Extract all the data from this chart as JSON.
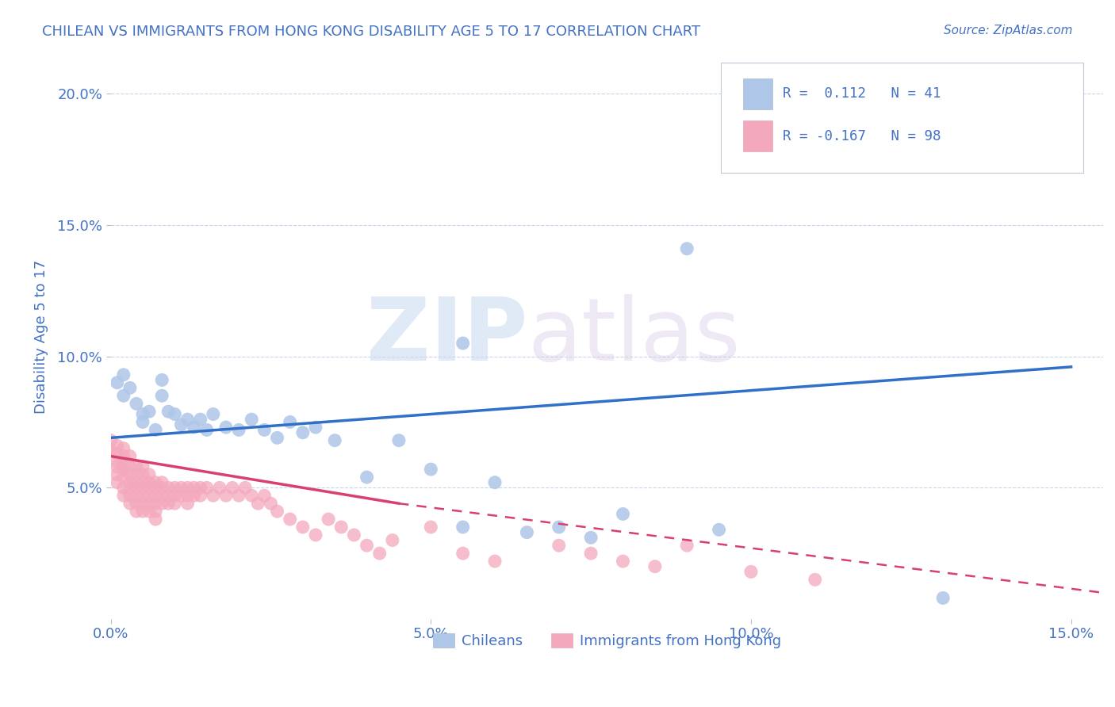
{
  "title": "CHILEAN VS IMMIGRANTS FROM HONG KONG DISABILITY AGE 5 TO 17 CORRELATION CHART",
  "source": "Source: ZipAtlas.com",
  "ylabel_label": "Disability Age 5 to 17",
  "xlim": [
    0.0,
    0.155
  ],
  "ylim": [
    0.0,
    0.215
  ],
  "xticks": [
    0.0,
    0.05,
    0.1,
    0.15
  ],
  "xtick_labels": [
    "0.0%",
    "5.0%",
    "10.0%",
    "15.0%"
  ],
  "yticks": [
    0.05,
    0.1,
    0.15,
    0.2
  ],
  "ytick_labels": [
    "5.0%",
    "10.0%",
    "15.0%",
    "20.0%"
  ],
  "legend_chileans": "Chileans",
  "legend_hk": "Immigrants from Hong Kong",
  "r_chileans": "R =  0.112",
  "n_chileans": "N = 41",
  "r_hk": "R = -0.167",
  "n_hk": "N = 98",
  "color_chileans": "#aec6e8",
  "color_hk": "#f4a8bc",
  "color_line_chileans": "#3070c8",
  "color_line_hk": "#d84070",
  "watermark_zip": "ZIP",
  "watermark_atlas": "atlas",
  "background_color": "#ffffff",
  "line_chileans_x0": 0.0,
  "line_chileans_y0": 0.069,
  "line_chileans_x1": 0.15,
  "line_chileans_y1": 0.096,
  "line_hk_solid_x0": 0.0,
  "line_hk_solid_y0": 0.062,
  "line_hk_solid_x1": 0.045,
  "line_hk_solid_y1": 0.044,
  "line_hk_dash_x0": 0.045,
  "line_hk_dash_y0": 0.044,
  "line_hk_dash_x1": 0.155,
  "line_hk_dash_y1": 0.01,
  "chileans_x": [
    0.001,
    0.002,
    0.002,
    0.003,
    0.004,
    0.005,
    0.005,
    0.006,
    0.007,
    0.008,
    0.008,
    0.009,
    0.01,
    0.011,
    0.012,
    0.013,
    0.014,
    0.015,
    0.016,
    0.018,
    0.02,
    0.022,
    0.024,
    0.026,
    0.028,
    0.03,
    0.032,
    0.035,
    0.04,
    0.045,
    0.05,
    0.055,
    0.06,
    0.065,
    0.07,
    0.075,
    0.08,
    0.09,
    0.095,
    0.13,
    0.055
  ],
  "chileans_y": [
    0.09,
    0.093,
    0.085,
    0.088,
    0.082,
    0.078,
    0.075,
    0.079,
    0.072,
    0.091,
    0.085,
    0.079,
    0.078,
    0.074,
    0.076,
    0.073,
    0.076,
    0.072,
    0.078,
    0.073,
    0.072,
    0.076,
    0.072,
    0.069,
    0.075,
    0.071,
    0.073,
    0.068,
    0.054,
    0.068,
    0.057,
    0.035,
    0.052,
    0.033,
    0.035,
    0.031,
    0.04,
    0.141,
    0.034,
    0.008,
    0.105
  ],
  "hk_x": [
    0.0,
    0.0,
    0.001,
    0.001,
    0.001,
    0.001,
    0.001,
    0.001,
    0.002,
    0.002,
    0.002,
    0.002,
    0.002,
    0.002,
    0.002,
    0.003,
    0.003,
    0.003,
    0.003,
    0.003,
    0.003,
    0.003,
    0.004,
    0.004,
    0.004,
    0.004,
    0.004,
    0.004,
    0.004,
    0.005,
    0.005,
    0.005,
    0.005,
    0.005,
    0.005,
    0.005,
    0.006,
    0.006,
    0.006,
    0.006,
    0.006,
    0.006,
    0.007,
    0.007,
    0.007,
    0.007,
    0.007,
    0.007,
    0.008,
    0.008,
    0.008,
    0.008,
    0.009,
    0.009,
    0.009,
    0.01,
    0.01,
    0.01,
    0.011,
    0.011,
    0.012,
    0.012,
    0.012,
    0.013,
    0.013,
    0.014,
    0.014,
    0.015,
    0.016,
    0.017,
    0.018,
    0.019,
    0.02,
    0.021,
    0.022,
    0.023,
    0.024,
    0.025,
    0.026,
    0.028,
    0.03,
    0.032,
    0.034,
    0.036,
    0.038,
    0.04,
    0.042,
    0.044,
    0.05,
    0.055,
    0.06,
    0.07,
    0.075,
    0.08,
    0.085,
    0.09,
    0.1,
    0.11
  ],
  "hk_y": [
    0.068,
    0.064,
    0.066,
    0.063,
    0.06,
    0.058,
    0.055,
    0.052,
    0.065,
    0.062,
    0.059,
    0.057,
    0.054,
    0.05,
    0.047,
    0.062,
    0.058,
    0.055,
    0.052,
    0.05,
    0.047,
    0.044,
    0.058,
    0.055,
    0.052,
    0.05,
    0.047,
    0.044,
    0.041,
    0.058,
    0.055,
    0.052,
    0.05,
    0.047,
    0.044,
    0.041,
    0.055,
    0.052,
    0.05,
    0.047,
    0.044,
    0.041,
    0.052,
    0.05,
    0.047,
    0.044,
    0.041,
    0.038,
    0.052,
    0.05,
    0.047,
    0.044,
    0.05,
    0.047,
    0.044,
    0.05,
    0.047,
    0.044,
    0.05,
    0.047,
    0.05,
    0.047,
    0.044,
    0.05,
    0.047,
    0.05,
    0.047,
    0.05,
    0.047,
    0.05,
    0.047,
    0.05,
    0.047,
    0.05,
    0.047,
    0.044,
    0.047,
    0.044,
    0.041,
    0.038,
    0.035,
    0.032,
    0.038,
    0.035,
    0.032,
    0.028,
    0.025,
    0.03,
    0.035,
    0.025,
    0.022,
    0.028,
    0.025,
    0.022,
    0.02,
    0.028,
    0.018,
    0.015
  ]
}
